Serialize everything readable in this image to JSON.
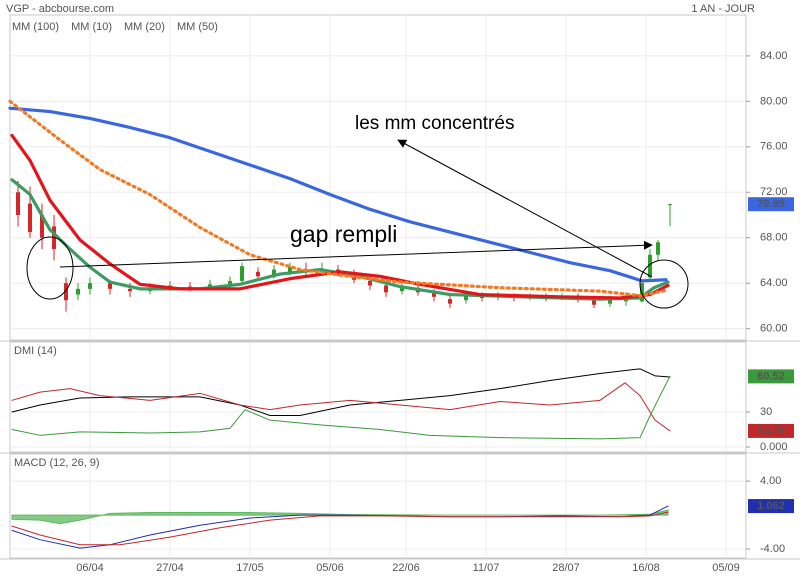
{
  "chart_data": [
    {
      "type": "candlestick",
      "title": "VGP - abcbourse.com",
      "subtitle": "1 AN - JOUR",
      "xlim": [
        0,
        184
      ],
      "ylim": [
        59,
        87.6
      ],
      "yticks": [
        {
          "value": 60,
          "label": "60.00"
        },
        {
          "value": 64,
          "label": "64.00"
        },
        {
          "value": 68,
          "label": "68.00"
        },
        {
          "value": 72,
          "label": "72.00"
        },
        {
          "value": 76,
          "label": "76.00"
        },
        {
          "value": 80,
          "label": "80.00"
        },
        {
          "value": 84,
          "label": "84.00"
        }
      ],
      "grid": true,
      "up_color": "#2ca02c",
      "down_color": "#d62728",
      "last_close_color": "#3a66e0",
      "candles": {
        "x": [
          2,
          5,
          8,
          11,
          14,
          17,
          20,
          25,
          30,
          35,
          40,
          45,
          50,
          55,
          58,
          62,
          66,
          70,
          74,
          78,
          82,
          86,
          90,
          94,
          98,
          102,
          106,
          110,
          114,
          118,
          122,
          126,
          130,
          134,
          138,
          142,
          146,
          150,
          154,
          158,
          160,
          162,
          165
        ],
        "open": [
          72,
          71,
          70,
          69,
          64,
          63,
          63.5,
          64,
          63.5,
          63.3,
          63.6,
          63.7,
          63.6,
          63.9,
          64.2,
          65,
          64.6,
          65,
          65.2,
          65,
          65.2,
          64.8,
          64.2,
          63.8,
          63.3,
          63.6,
          63.2,
          62.6,
          62.5,
          62.9,
          62.8,
          62.9,
          62.7,
          62.8,
          62.7,
          62.9,
          62.5,
          62.2,
          62.4,
          62.4,
          64.5,
          66.5,
          70.9
        ],
        "high": [
          73,
          72.5,
          71,
          70,
          64.5,
          64,
          64.5,
          64.3,
          64,
          64,
          64.2,
          64.1,
          64.3,
          64.6,
          65.8,
          65.4,
          65.6,
          65.8,
          65.8,
          65.8,
          65.6,
          65.2,
          64.6,
          64.1,
          64,
          64,
          63.5,
          63,
          63.2,
          63.2,
          63.2,
          63.1,
          63.1,
          63.1,
          63.1,
          63.1,
          62.8,
          62.9,
          63.2,
          64.3,
          67,
          67.8,
          71
        ],
        "low": [
          69,
          68,
          67,
          66,
          61.5,
          62.5,
          63,
          63,
          62.8,
          63,
          63.3,
          63.3,
          63.4,
          63.6,
          64,
          64.2,
          64.4,
          64.7,
          64.6,
          64.8,
          64.6,
          64,
          63.4,
          62.8,
          63,
          62.9,
          62.4,
          61.8,
          62.2,
          62.4,
          62.5,
          62.4,
          62.5,
          62.4,
          62.5,
          62.3,
          61.8,
          61.9,
          62,
          62.3,
          64.3,
          66,
          69
        ],
        "close": [
          70,
          68.5,
          68,
          67,
          62.5,
          63.5,
          64,
          63.5,
          63.3,
          63.6,
          63.8,
          63.6,
          63.9,
          64.2,
          65.5,
          64.6,
          65.2,
          65.4,
          65,
          65.3,
          65,
          64.3,
          63.8,
          63.2,
          63.6,
          63.2,
          62.8,
          62.2,
          62.9,
          62.7,
          62.9,
          62.7,
          62.9,
          62.7,
          62.9,
          62.6,
          62.1,
          62.6,
          62.9,
          64,
          66.5,
          67.6,
          70.95
        ]
      },
      "series": [
        {
          "name": "MM (100)",
          "color": "#3a66e0",
          "x": [
            0,
            10,
            20,
            30,
            40,
            50,
            60,
            70,
            80,
            90,
            100,
            110,
            120,
            130,
            140,
            150,
            158,
            164
          ],
          "values": [
            79.4,
            79.1,
            78.5,
            77.7,
            76.8,
            75.6,
            74.4,
            73.2,
            71.8,
            70.5,
            69.4,
            68.5,
            67.6,
            66.7,
            65.8,
            65.1,
            64.2,
            64.3
          ]
        },
        {
          "name": "MM (10)",
          "color": "#3c9a62",
          "x": [
            0.5,
            5,
            10,
            15,
            20,
            25,
            32.5,
            47.5,
            57.5,
            67.5,
            77.5,
            87.5,
            97.5,
            110,
            127.5,
            147.5,
            157.5,
            161,
            164.5
          ],
          "values": [
            73.1,
            71.8,
            68.7,
            67,
            65.4,
            64.1,
            63.5,
            63.5,
            63.9,
            64.8,
            65.2,
            64.6,
            63.7,
            63,
            62.8,
            62.6,
            62.7,
            63.6,
            64.1
          ]
        },
        {
          "name": "MM (20)",
          "color": "#e3151b",
          "x": [
            0.5,
            5,
            10,
            17.5,
            25,
            32.5,
            42.5,
            57.5,
            70,
            82.5,
            92.5,
            102.5,
            117.5,
            137.5,
            152.5,
            160,
            164.5
          ],
          "values": [
            77,
            74.8,
            71.3,
            67.8,
            65.7,
            63.9,
            63.5,
            63.5,
            64.4,
            65,
            64.6,
            63.9,
            63,
            62.8,
            62.7,
            63,
            63.8
          ]
        },
        {
          "name": "MM (50)",
          "color": "#f07a25",
          "dashed": true,
          "x": [
            0,
            12.5,
            22.5,
            35,
            47.5,
            60,
            72.5,
            85,
            97.5,
            122.5,
            147.5,
            157.5,
            164.5
          ],
          "values": [
            80,
            76.6,
            74,
            71.8,
            68.9,
            66.5,
            65.2,
            64.6,
            64.1,
            63.6,
            63.3,
            62.9,
            63.4
          ]
        }
      ],
      "annotations": [
        "les mm concentrés",
        "gap rempli"
      ]
    },
    {
      "type": "line",
      "title": "DMI (14)",
      "xlim": [
        0,
        184
      ],
      "ylim": [
        -4.3,
        90
      ],
      "yticks": [
        {
          "value": 0,
          "label": "0.000"
        },
        30
      ],
      "grid": true,
      "series": [
        {
          "color": "#000000",
          "x": [
            0.5,
            7.5,
            17.5,
            30,
            47.5,
            57.5,
            65,
            72.5,
            85,
            97.5,
            110,
            122.5,
            135,
            147.5,
            157.5,
            161.25,
            165
          ],
          "values": [
            30,
            36,
            42,
            43,
            43,
            36,
            27,
            27,
            36,
            40,
            44,
            50,
            57,
            63,
            67,
            61,
            60
          ]
        },
        {
          "color": "#c0282a",
          "label_last": true,
          "x": [
            0.5,
            7.5,
            15,
            22.5,
            35,
            47.5,
            57.5,
            65,
            72.5,
            85,
            97.5,
            110,
            122.5,
            135,
            147.5,
            153.75,
            157.5,
            161.25,
            165
          ],
          "values": [
            40,
            47,
            50,
            44,
            40,
            46,
            36,
            32,
            36,
            40,
            36,
            32,
            39,
            36,
            40,
            55,
            44,
            23,
            13.78
          ]
        },
        {
          "color": "#3a9a3a",
          "label_last": true,
          "x": [
            0.5,
            7.5,
            17.5,
            35,
            47.5,
            55,
            58.75,
            65,
            77.5,
            92.5,
            105,
            122.5,
            147.5,
            157.5,
            159.5,
            162.5,
            165
          ],
          "values": [
            15,
            10,
            13,
            12,
            13,
            16,
            32,
            23,
            19,
            15,
            10,
            8,
            7,
            8,
            23,
            44,
            60.52
          ]
        }
      ]
    },
    {
      "type": "line",
      "title": "MACD (12, 26, 9)",
      "xlim": [
        0,
        184
      ],
      "ylim": [
        -5.06,
        7.2
      ],
      "yticks": [
        {
          "value": -4,
          "label": "-4.00"
        },
        {
          "value": 4,
          "label": "4.00"
        }
      ],
      "grid": true,
      "xticks": [
        {
          "value": 20,
          "label": "06/04"
        },
        {
          "value": 40,
          "label": "27/04"
        },
        {
          "value": 60,
          "label": "17/05"
        },
        {
          "value": 80,
          "label": "05/06"
        },
        {
          "value": 99,
          "label": "22/06"
        },
        {
          "value": 119,
          "label": "11/07"
        },
        {
          "value": 139,
          "label": "28/07"
        },
        {
          "value": 159,
          "label": "16/08"
        },
        {
          "value": 179,
          "label": "05/09"
        }
      ],
      "series": [
        {
          "type": "area",
          "color": "#5cb85c",
          "x": [
            0.5,
            7.5,
            12.5,
            17.5,
            25,
            35,
            47.5,
            60,
            72.5,
            85,
            110,
            147.5,
            160,
            164.5
          ],
          "values": [
            -0.5,
            -0.6,
            -1,
            -0.6,
            0.2,
            0.3,
            0.3,
            0.3,
            0.2,
            0.05,
            0,
            0,
            0.1,
            0.6
          ]
        },
        {
          "color": "#1f2fb0",
          "label_last": true,
          "x": [
            0.5,
            7.5,
            17.5,
            25,
            35,
            47.5,
            60,
            72.5,
            85,
            97.5,
            110,
            122.5,
            137.5,
            152.5,
            160,
            164.5
          ],
          "values": [
            -1.8,
            -2.9,
            -3.9,
            -3.5,
            -2.35,
            -1.2,
            -0.35,
            0,
            0,
            -0.1,
            -0.2,
            -0.2,
            -0.1,
            -0.2,
            0,
            1.062
          ]
        },
        {
          "color": "#c0282a",
          "x": [
            0.5,
            7.5,
            17.5,
            27.5,
            40,
            52.5,
            65,
            77.5,
            92.5,
            110,
            135,
            152.5,
            160,
            164.5
          ],
          "values": [
            -1.3,
            -2.35,
            -3.5,
            -3.5,
            -2.6,
            -1.5,
            -0.6,
            -0.1,
            -0.1,
            -0.2,
            -0.2,
            -0.2,
            -0.1,
            0.35
          ]
        }
      ]
    }
  ]
}
